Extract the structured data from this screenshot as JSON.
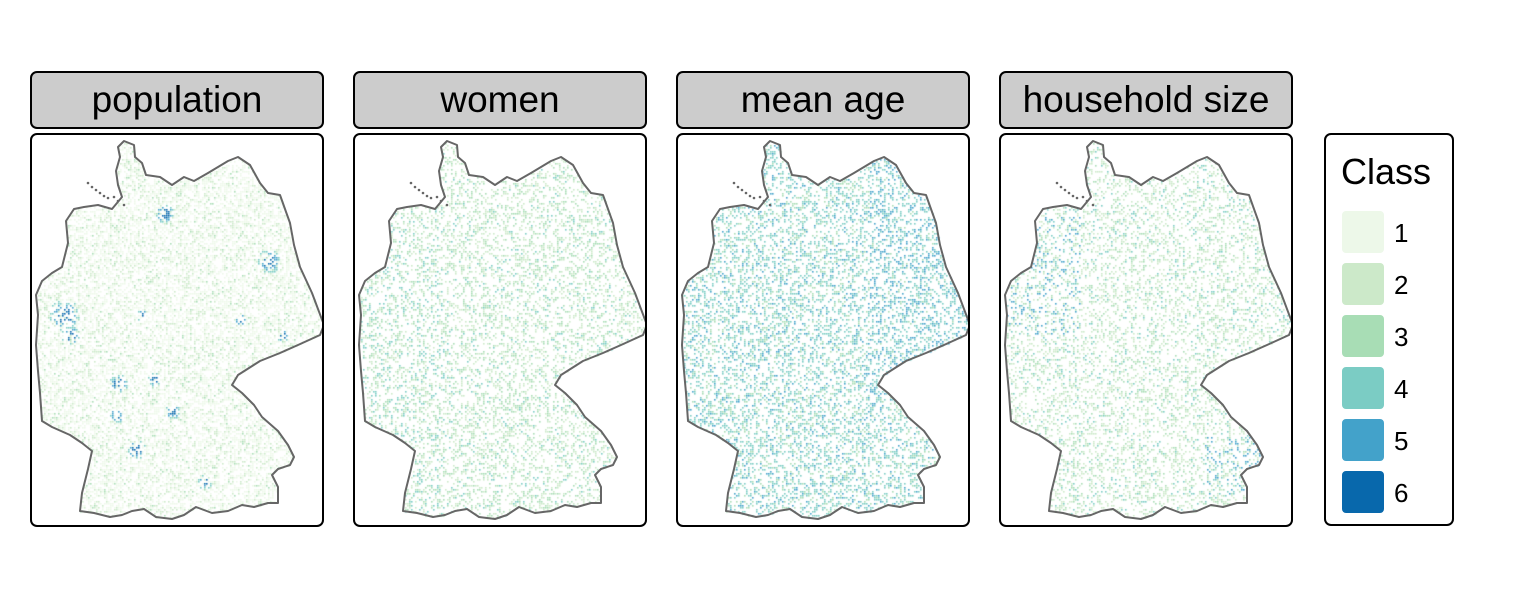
{
  "panels": [
    {
      "label": "population",
      "variable": "population"
    },
    {
      "label": "women",
      "variable": "women"
    },
    {
      "label": "mean age",
      "variable": "mean_age"
    },
    {
      "label": "household size",
      "variable": "household_size"
    }
  ],
  "legend": {
    "title": "Class",
    "classes": [
      {
        "label": "1",
        "color": "#edf8e9"
      },
      {
        "label": "2",
        "color": "#cce9c9"
      },
      {
        "label": "3",
        "color": "#a8ddb5"
      },
      {
        "label": "4",
        "color": "#7bccc4"
      },
      {
        "label": "5",
        "color": "#43a2ca"
      },
      {
        "label": "6",
        "color": "#0868ac"
      }
    ]
  },
  "colors": {
    "strip_background": "#cccccc",
    "border_outline": "#666666"
  }
}
